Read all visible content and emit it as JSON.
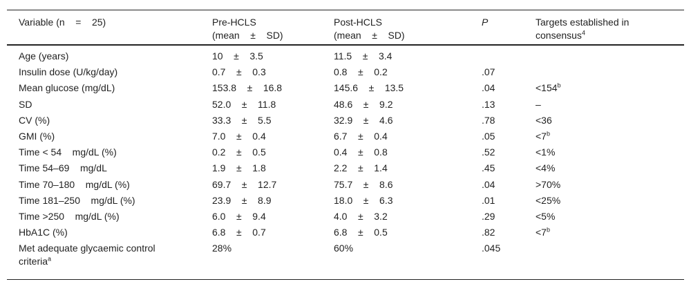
{
  "headers": {
    "variable": "Variable (n    =    25)",
    "pre_line1": "Pre-HCLS",
    "pre_line2": "(mean    ±    SD)",
    "post_line1": "Post-HCLS",
    "post_line2": "(mean    ±    SD)",
    "p": "P",
    "targets_line1": "Targets established in",
    "targets_line2": "consensus",
    "targets_sup": "4"
  },
  "rows": [
    {
      "variable": "Age (years)",
      "pre": "10    ±    3.5",
      "post": "11.5    ±    3.4",
      "p": "",
      "target": "",
      "target_sup": ""
    },
    {
      "variable": "Insulin dose (U/kg/day)",
      "pre": "0.7    ±    0.3",
      "post": "0.8    ±    0.2",
      "p": ".07",
      "target": "",
      "target_sup": ""
    },
    {
      "variable": "Mean glucose (mg/dL)",
      "pre": "153.8    ±    16.8",
      "post": "145.6    ±    13.5",
      "p": ".04",
      "target": "<154",
      "target_sup": "b"
    },
    {
      "variable": "SD",
      "pre": "52.0    ±    11.8",
      "post": "48.6    ±    9.2",
      "p": ".13",
      "target": "–",
      "target_sup": ""
    },
    {
      "variable": "CV (%)",
      "pre": "33.3    ±    5.5",
      "post": "32.9    ±    4.6",
      "p": ".78",
      "target": "<36",
      "target_sup": ""
    },
    {
      "variable": "GMI (%)",
      "pre": "7.0    ±    0.4",
      "post": "6.7    ±    0.4",
      "p": ".05",
      "target": "<7",
      "target_sup": "b"
    },
    {
      "variable": "Time < 54    mg/dL (%)",
      "pre": "0.2    ±    0.5",
      "post": "0.4    ±    0.8",
      "p": ".52",
      "target": "<1%",
      "target_sup": ""
    },
    {
      "variable": "Time 54–69    mg/dL",
      "pre": "1.9    ±    1.8",
      "post": "2.2    ±    1.4",
      "p": ".45",
      "target": "<4%",
      "target_sup": ""
    },
    {
      "variable": "Time 70–180    mg/dL (%)",
      "pre": "69.7    ±    12.7",
      "post": "75.7    ±    8.6",
      "p": ".04",
      "target": ">70%",
      "target_sup": ""
    },
    {
      "variable": "Time 181–250    mg/dL (%)",
      "pre": "23.9    ±    8.9",
      "post": "18.0    ±    6.3",
      "p": ".01",
      "target": "<25%",
      "target_sup": ""
    },
    {
      "variable": "Time >250    mg/dL (%)",
      "pre": "6.0    ±    9.4",
      "post": "4.0    ±    3.2",
      "p": ".29",
      "target": "<5%",
      "target_sup": ""
    },
    {
      "variable": "HbA1C (%)",
      "pre": "6.8    ±    0.7",
      "post": "6.8    ±    0.5",
      "p": ".82",
      "target": "<7",
      "target_sup": "b"
    }
  ],
  "last_row": {
    "variable_line1": "Met adequate glycaemic control",
    "variable_line2": "criteria",
    "variable_sup": "a",
    "pre": "28%",
    "post": "60%",
    "p": ".045"
  }
}
